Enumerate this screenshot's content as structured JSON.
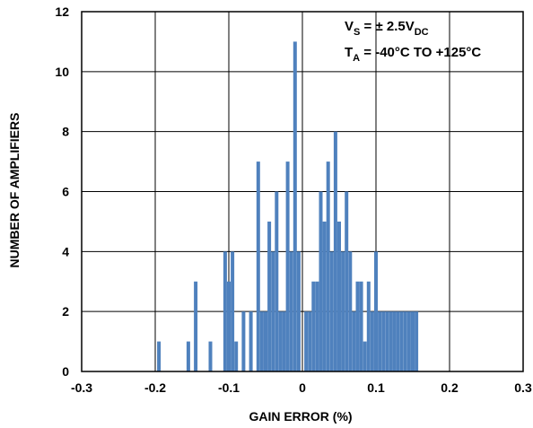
{
  "chart_data": {
    "type": "bar",
    "title": "",
    "xlabel": "GAIN ERROR (%)",
    "ylabel": "NUMBER OF AMPLIFIERS",
    "xlim": [
      -0.3,
      0.3
    ],
    "ylim": [
      0,
      12
    ],
    "x_ticks": [
      -0.3,
      -0.2,
      -0.1,
      0,
      0.1,
      0.2,
      0.3
    ],
    "x_tick_labels": [
      "-0.3",
      "-0.2",
      "-0.1",
      "0",
      "0.1",
      "0.2",
      "0.3"
    ],
    "y_ticks": [
      0,
      2,
      4,
      6,
      8,
      10,
      12
    ],
    "y_tick_labels": [
      "0",
      "2",
      "4",
      "6",
      "8",
      "10",
      "12"
    ],
    "grid": true,
    "bar_color": "#4f81bd",
    "x": [
      -0.195,
      -0.155,
      -0.145,
      -0.125,
      -0.105,
      -0.1,
      -0.095,
      -0.09,
      -0.08,
      -0.07,
      -0.06,
      -0.055,
      -0.05,
      -0.045,
      -0.04,
      -0.035,
      -0.03,
      -0.025,
      -0.02,
      -0.015,
      -0.01,
      -0.005,
      0.005,
      0.01,
      0.015,
      0.02,
      0.025,
      0.03,
      0.035,
      0.04,
      0.045,
      0.05,
      0.055,
      0.06,
      0.065,
      0.07,
      0.075,
      0.08,
      0.085,
      0.09,
      0.095,
      0.1,
      0.105,
      0.11,
      0.115,
      0.12,
      0.125,
      0.13,
      0.135,
      0.14,
      0.145,
      0.15,
      0.155
    ],
    "values": [
      1,
      1,
      3,
      1,
      4,
      3,
      4,
      1,
      2,
      2,
      7,
      2,
      2,
      5,
      4,
      6,
      2,
      2,
      7,
      4,
      11,
      4,
      2,
      2,
      3,
      3,
      6,
      5,
      7,
      4,
      8,
      5,
      4,
      6,
      4,
      2,
      3,
      3,
      1,
      3,
      2,
      4,
      2,
      2,
      2,
      2,
      2,
      2,
      2,
      2,
      2,
      2,
      2
    ],
    "annotations": {
      "line1_main": "V",
      "line1_sub": "S",
      "line1_rest": " = ± 2.5V",
      "line1_sub2": "DC",
      "line2_main": "T",
      "line2_sub": "A",
      "line2_rest": " = -40°C TO +125°C"
    }
  }
}
